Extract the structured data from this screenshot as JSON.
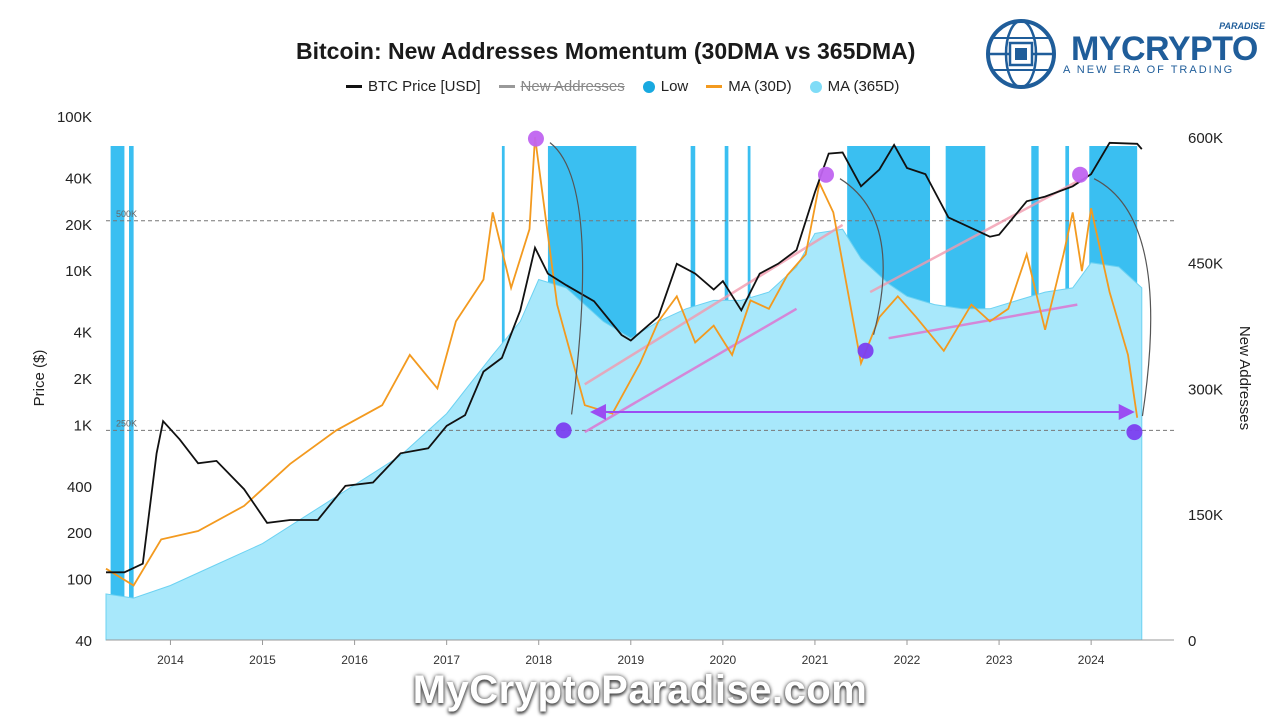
{
  "chart_data": {
    "type": "area",
    "title": "Bitcoin: New Addresses Momentum (30DMA vs 365DMA)",
    "legend": [
      {
        "label": "BTC Price [USD]",
        "color": "#111111",
        "style": "line",
        "disabled": false
      },
      {
        "label": "New Addresses",
        "color": "#999999",
        "style": "line",
        "disabled": true
      },
      {
        "label": "Low",
        "color": "#18a9e0",
        "style": "dot",
        "disabled": false
      },
      {
        "label": "MA (30D)",
        "color": "#f39a1f",
        "style": "line",
        "disabled": false
      },
      {
        "label": "MA (365D)",
        "color": "#7fdcf7",
        "style": "dot",
        "disabled": false
      }
    ],
    "x_ticks": [
      "2014",
      "2015",
      "2016",
      "2017",
      "2018",
      "2019",
      "2020",
      "2021",
      "2022",
      "2023",
      "2024"
    ],
    "xlim": [
      2013.3,
      2024.9
    ],
    "y_left": {
      "label": "Price ($)",
      "scale": "log",
      "lim": [
        40,
        100000
      ],
      "ticks": [
        {
          "v": 100000,
          "label": "100K"
        },
        {
          "v": 40000,
          "label": "40K"
        },
        {
          "v": 20000,
          "label": "20K"
        },
        {
          "v": 10000,
          "label": "10K"
        },
        {
          "v": 4000,
          "label": "4K"
        },
        {
          "v": 2000,
          "label": "2K"
        },
        {
          "v": 1000,
          "label": "1K"
        },
        {
          "v": 400,
          "label": "400"
        },
        {
          "v": 200,
          "label": "200"
        },
        {
          "v": 100,
          "label": "100"
        },
        {
          "v": 40,
          "label": "40"
        }
      ]
    },
    "y_right": {
      "label": "New Addresses",
      "lim": [
        0,
        625000
      ],
      "ticks": [
        {
          "v": 600000,
          "label": "600K"
        },
        {
          "v": 450000,
          "label": "450K"
        },
        {
          "v": 300000,
          "label": "300K"
        },
        {
          "v": 150000,
          "label": "150K"
        },
        {
          "v": 0,
          "label": "0"
        }
      ]
    },
    "ref_lines": [
      {
        "v": 500000,
        "label": "500K"
      },
      {
        "v": 250000,
        "label": "250K"
      }
    ],
    "series": [
      {
        "name": "BTC Price [USD]",
        "axis": "left",
        "x": [
          2013.3,
          2013.5,
          2013.7,
          2013.85,
          2013.92,
          2014.1,
          2014.3,
          2014.5,
          2014.8,
          2015.05,
          2015.3,
          2015.6,
          2015.9,
          2016.2,
          2016.5,
          2016.8,
          2017.0,
          2017.2,
          2017.4,
          2017.6,
          2017.8,
          2017.96,
          2018.1,
          2018.3,
          2018.6,
          2018.9,
          2019.0,
          2019.3,
          2019.5,
          2019.7,
          2019.9,
          2020.0,
          2020.2,
          2020.4,
          2020.6,
          2020.8,
          2021.0,
          2021.15,
          2021.3,
          2021.5,
          2021.7,
          2021.86,
          2022.0,
          2022.2,
          2022.45,
          2022.6,
          2022.9,
          2023.0,
          2023.3,
          2023.5,
          2023.8,
          2024.0,
          2024.2,
          2024.5,
          2024.55
        ],
        "values": [
          110,
          110,
          125,
          650,
          1050,
          800,
          560,
          580,
          380,
          230,
          240,
          240,
          400,
          420,
          650,
          700,
          980,
          1150,
          2200,
          2700,
          5500,
          14000,
          9500,
          8000,
          6300,
          3800,
          3500,
          5000,
          11000,
          9500,
          7500,
          8500,
          5500,
          9500,
          11000,
          13500,
          32000,
          57000,
          58000,
          35000,
          45000,
          65000,
          46000,
          42000,
          22000,
          20000,
          16500,
          17000,
          28000,
          30000,
          35000,
          42000,
          67000,
          66000,
          61000
        ]
      },
      {
        "name": "MA (30D)",
        "axis": "right",
        "x": [
          2013.3,
          2013.6,
          2013.9,
          2014.3,
          2014.8,
          2015.3,
          2015.8,
          2016.3,
          2016.6,
          2016.9,
          2017.1,
          2017.4,
          2017.5,
          2017.7,
          2017.9,
          2017.96,
          2018.2,
          2018.5,
          2018.8,
          2019.1,
          2019.3,
          2019.5,
          2019.7,
          2019.9,
          2020.1,
          2020.3,
          2020.5,
          2020.7,
          2020.9,
          2021.05,
          2021.2,
          2021.5,
          2021.7,
          2021.9,
          2022.1,
          2022.4,
          2022.7,
          2022.9,
          2023.1,
          2023.3,
          2023.5,
          2023.7,
          2023.8,
          2023.9,
          2024.0,
          2024.2,
          2024.4,
          2024.5
        ],
        "values": [
          85000,
          65000,
          120000,
          130000,
          160000,
          210000,
          250000,
          280000,
          340000,
          300000,
          380000,
          430000,
          510000,
          420000,
          490000,
          600000,
          400000,
          280000,
          270000,
          330000,
          380000,
          410000,
          355000,
          375000,
          340000,
          405000,
          395000,
          435000,
          460000,
          545000,
          510000,
          330000,
          385000,
          410000,
          385000,
          345000,
          400000,
          380000,
          395000,
          460000,
          370000,
          460000,
          510000,
          440000,
          515000,
          415000,
          340000,
          265000
        ]
      },
      {
        "name": "MA (365D)",
        "axis": "right",
        "x": [
          2013.3,
          2013.6,
          2014.0,
          2014.5,
          2015.0,
          2015.5,
          2016.0,
          2016.5,
          2017.0,
          2017.5,
          2017.8,
          2018.0,
          2018.3,
          2018.7,
          2019.0,
          2019.3,
          2019.6,
          2019.9,
          2020.2,
          2020.5,
          2020.8,
          2021.0,
          2021.3,
          2021.5,
          2021.8,
          2022.0,
          2022.3,
          2022.6,
          2022.9,
          2023.2,
          2023.5,
          2023.8,
          2024.0,
          2024.3,
          2024.55
        ],
        "values": [
          55000,
          50000,
          65000,
          90000,
          115000,
          150000,
          185000,
          220000,
          270000,
          340000,
          380000,
          430000,
          420000,
          380000,
          360000,
          380000,
          395000,
          405000,
          405000,
          415000,
          445000,
          485000,
          490000,
          455000,
          425000,
          410000,
          400000,
          395000,
          395000,
          405000,
          415000,
          420000,
          450000,
          445000,
          420000
        ]
      }
    ],
    "low_periods": [
      {
        "from": 2013.35,
        "to": 2013.5
      },
      {
        "from": 2013.55,
        "to": 2013.6
      },
      {
        "from": 2017.6,
        "to": 2017.63
      },
      {
        "from": 2018.1,
        "to": 2019.06
      },
      {
        "from": 2019.65,
        "to": 2019.7
      },
      {
        "from": 2020.02,
        "to": 2020.06
      },
      {
        "from": 2020.27,
        "to": 2020.3
      },
      {
        "from": 2021.35,
        "to": 2022.25
      },
      {
        "from": 2022.42,
        "to": 2022.85
      },
      {
        "from": 2023.35,
        "to": 2023.43
      },
      {
        "from": 2023.72,
        "to": 2023.76
      },
      {
        "from": 2023.98,
        "to": 2024.5
      }
    ],
    "annotations": [
      {
        "kind": "marker",
        "x": 2017.97,
        "axis": "right",
        "v": 598000,
        "color": "#c064f0"
      },
      {
        "kind": "marker",
        "x": 2018.27,
        "axis": "right",
        "v": 250000,
        "color": "#7b3ff0"
      },
      {
        "kind": "marker",
        "x": 2021.12,
        "axis": "right",
        "v": 555000,
        "color": "#c064f0"
      },
      {
        "kind": "marker",
        "x": 2021.55,
        "axis": "right",
        "v": 345000,
        "color": "#7b3ff0"
      },
      {
        "kind": "marker",
        "x": 2023.88,
        "axis": "right",
        "v": 555000,
        "color": "#c064f0"
      },
      {
        "kind": "marker",
        "x": 2024.47,
        "axis": "right",
        "v": 248000,
        "color": "#7b3ff0"
      },
      {
        "kind": "arrow",
        "from": [
          2018.6,
          272000
        ],
        "to": [
          2024.43,
          272000
        ],
        "color": "#9b4df2"
      },
      {
        "kind": "trend",
        "from": [
          2018.5,
          305000
        ],
        "to": [
          2021.3,
          495000
        ],
        "color": "#f29aae"
      },
      {
        "kind": "trend",
        "from": [
          2018.5,
          248000
        ],
        "to": [
          2020.8,
          395000
        ],
        "color": "#e070d0"
      },
      {
        "kind": "trend",
        "from": [
          2021.6,
          415000
        ],
        "to": [
          2023.9,
          550000
        ],
        "color": "#f29aae"
      },
      {
        "kind": "trend",
        "from": [
          2021.8,
          360000
        ],
        "to": [
          2023.85,
          400000
        ],
        "color": "#e070d0"
      }
    ]
  },
  "brand": {
    "name": "MYCRYPTO",
    "sub": "PARADISE",
    "tagline": "A NEW ERA OF TRADING",
    "footer": "MyCryptoParadise.com"
  }
}
